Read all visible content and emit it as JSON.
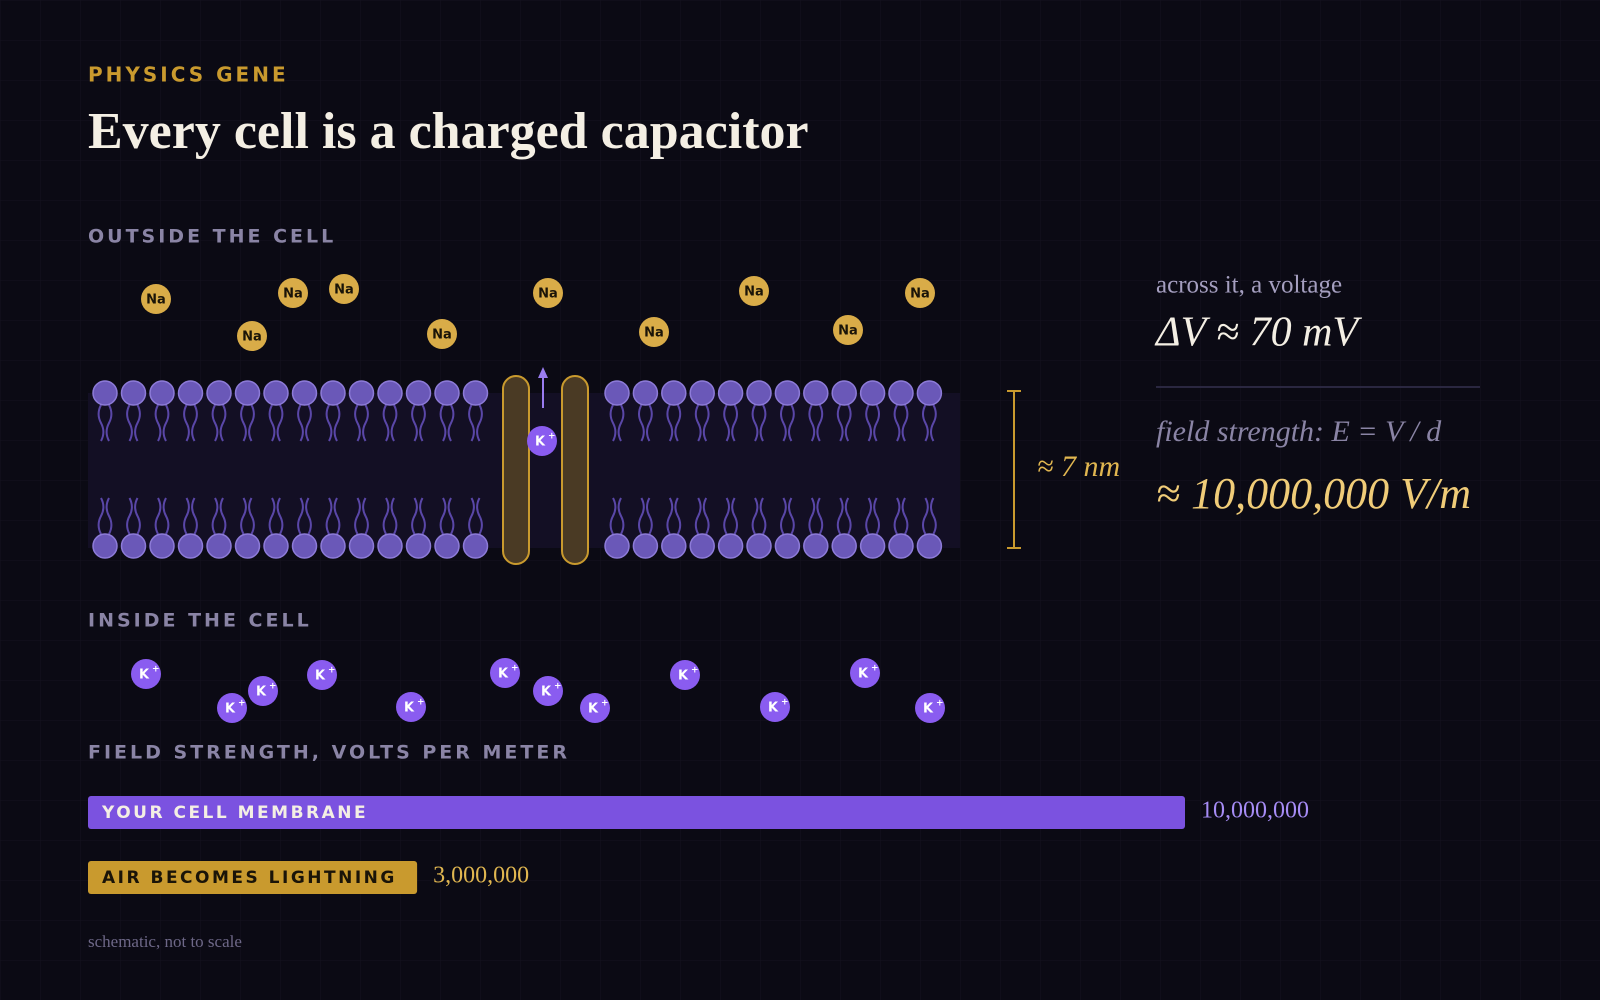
{
  "header": {
    "kicker": "PHYSICS GENE",
    "title": "Every cell is a charged capacitor"
  },
  "diagram": {
    "outside_label": "OUTSIDE THE CELL",
    "inside_label": "INSIDE THE CELL",
    "sodium_label": "Na",
    "potassium_label": "K",
    "potassium_charge": "+",
    "thickness_label": "≈ 7 nm"
  },
  "readout": {
    "voltage_caption": "across it, a voltage",
    "voltage": "ΔV ≈ 70 mV",
    "field_caption": "field strength: E = V / d",
    "field": "≈ 10,000,000 V/m"
  },
  "comparison": {
    "title": "FIELD STRENGTH, VOLTS PER METER",
    "bars": [
      {
        "name": "YOUR CELL MEMBRANE",
        "value": 10000000,
        "value_label": "10,000,000",
        "color": "#7b52e0"
      },
      {
        "name": "AIR BECOMES LIGHTNING",
        "value": 3000000,
        "value_label": "3,000,000",
        "color": "#c99a2e"
      }
    ]
  },
  "footnote": "schematic, not to scale"
}
